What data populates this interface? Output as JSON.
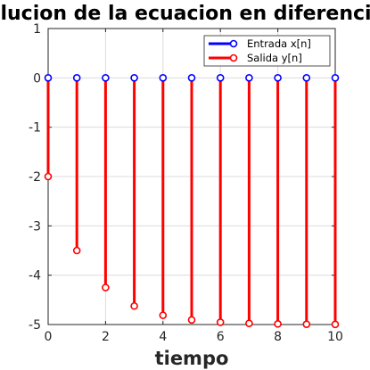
{
  "chart_data": {
    "type": "stem",
    "title": "Solucion de la ecuacion en diferencias",
    "xlabel": "tiempo",
    "ylabel": "",
    "xlim": [
      0,
      10
    ],
    "ylim": [
      -5,
      1
    ],
    "xticks": [
      "0",
      "2",
      "4",
      "6",
      "8",
      "10"
    ],
    "yticks": [
      "1",
      "0",
      "-1",
      "-2",
      "-3",
      "-4",
      "-5"
    ],
    "grid": true,
    "legend_position": "top-right",
    "x": [
      0,
      1,
      2,
      3,
      4,
      5,
      6,
      7,
      8,
      9,
      10
    ],
    "series": [
      {
        "name": "Entrada x[n]",
        "color": "#0000ff",
        "values": [
          0,
          0,
          0,
          0,
          0,
          0,
          0,
          0,
          0,
          0,
          0
        ]
      },
      {
        "name": "Salida y[n]",
        "color": "#ff0000",
        "values": [
          -2,
          -3.5,
          -4.25,
          -4.625,
          -4.8125,
          -4.9063,
          -4.9531,
          -4.9766,
          -4.9883,
          -4.9941,
          -4.9971
        ]
      }
    ]
  }
}
